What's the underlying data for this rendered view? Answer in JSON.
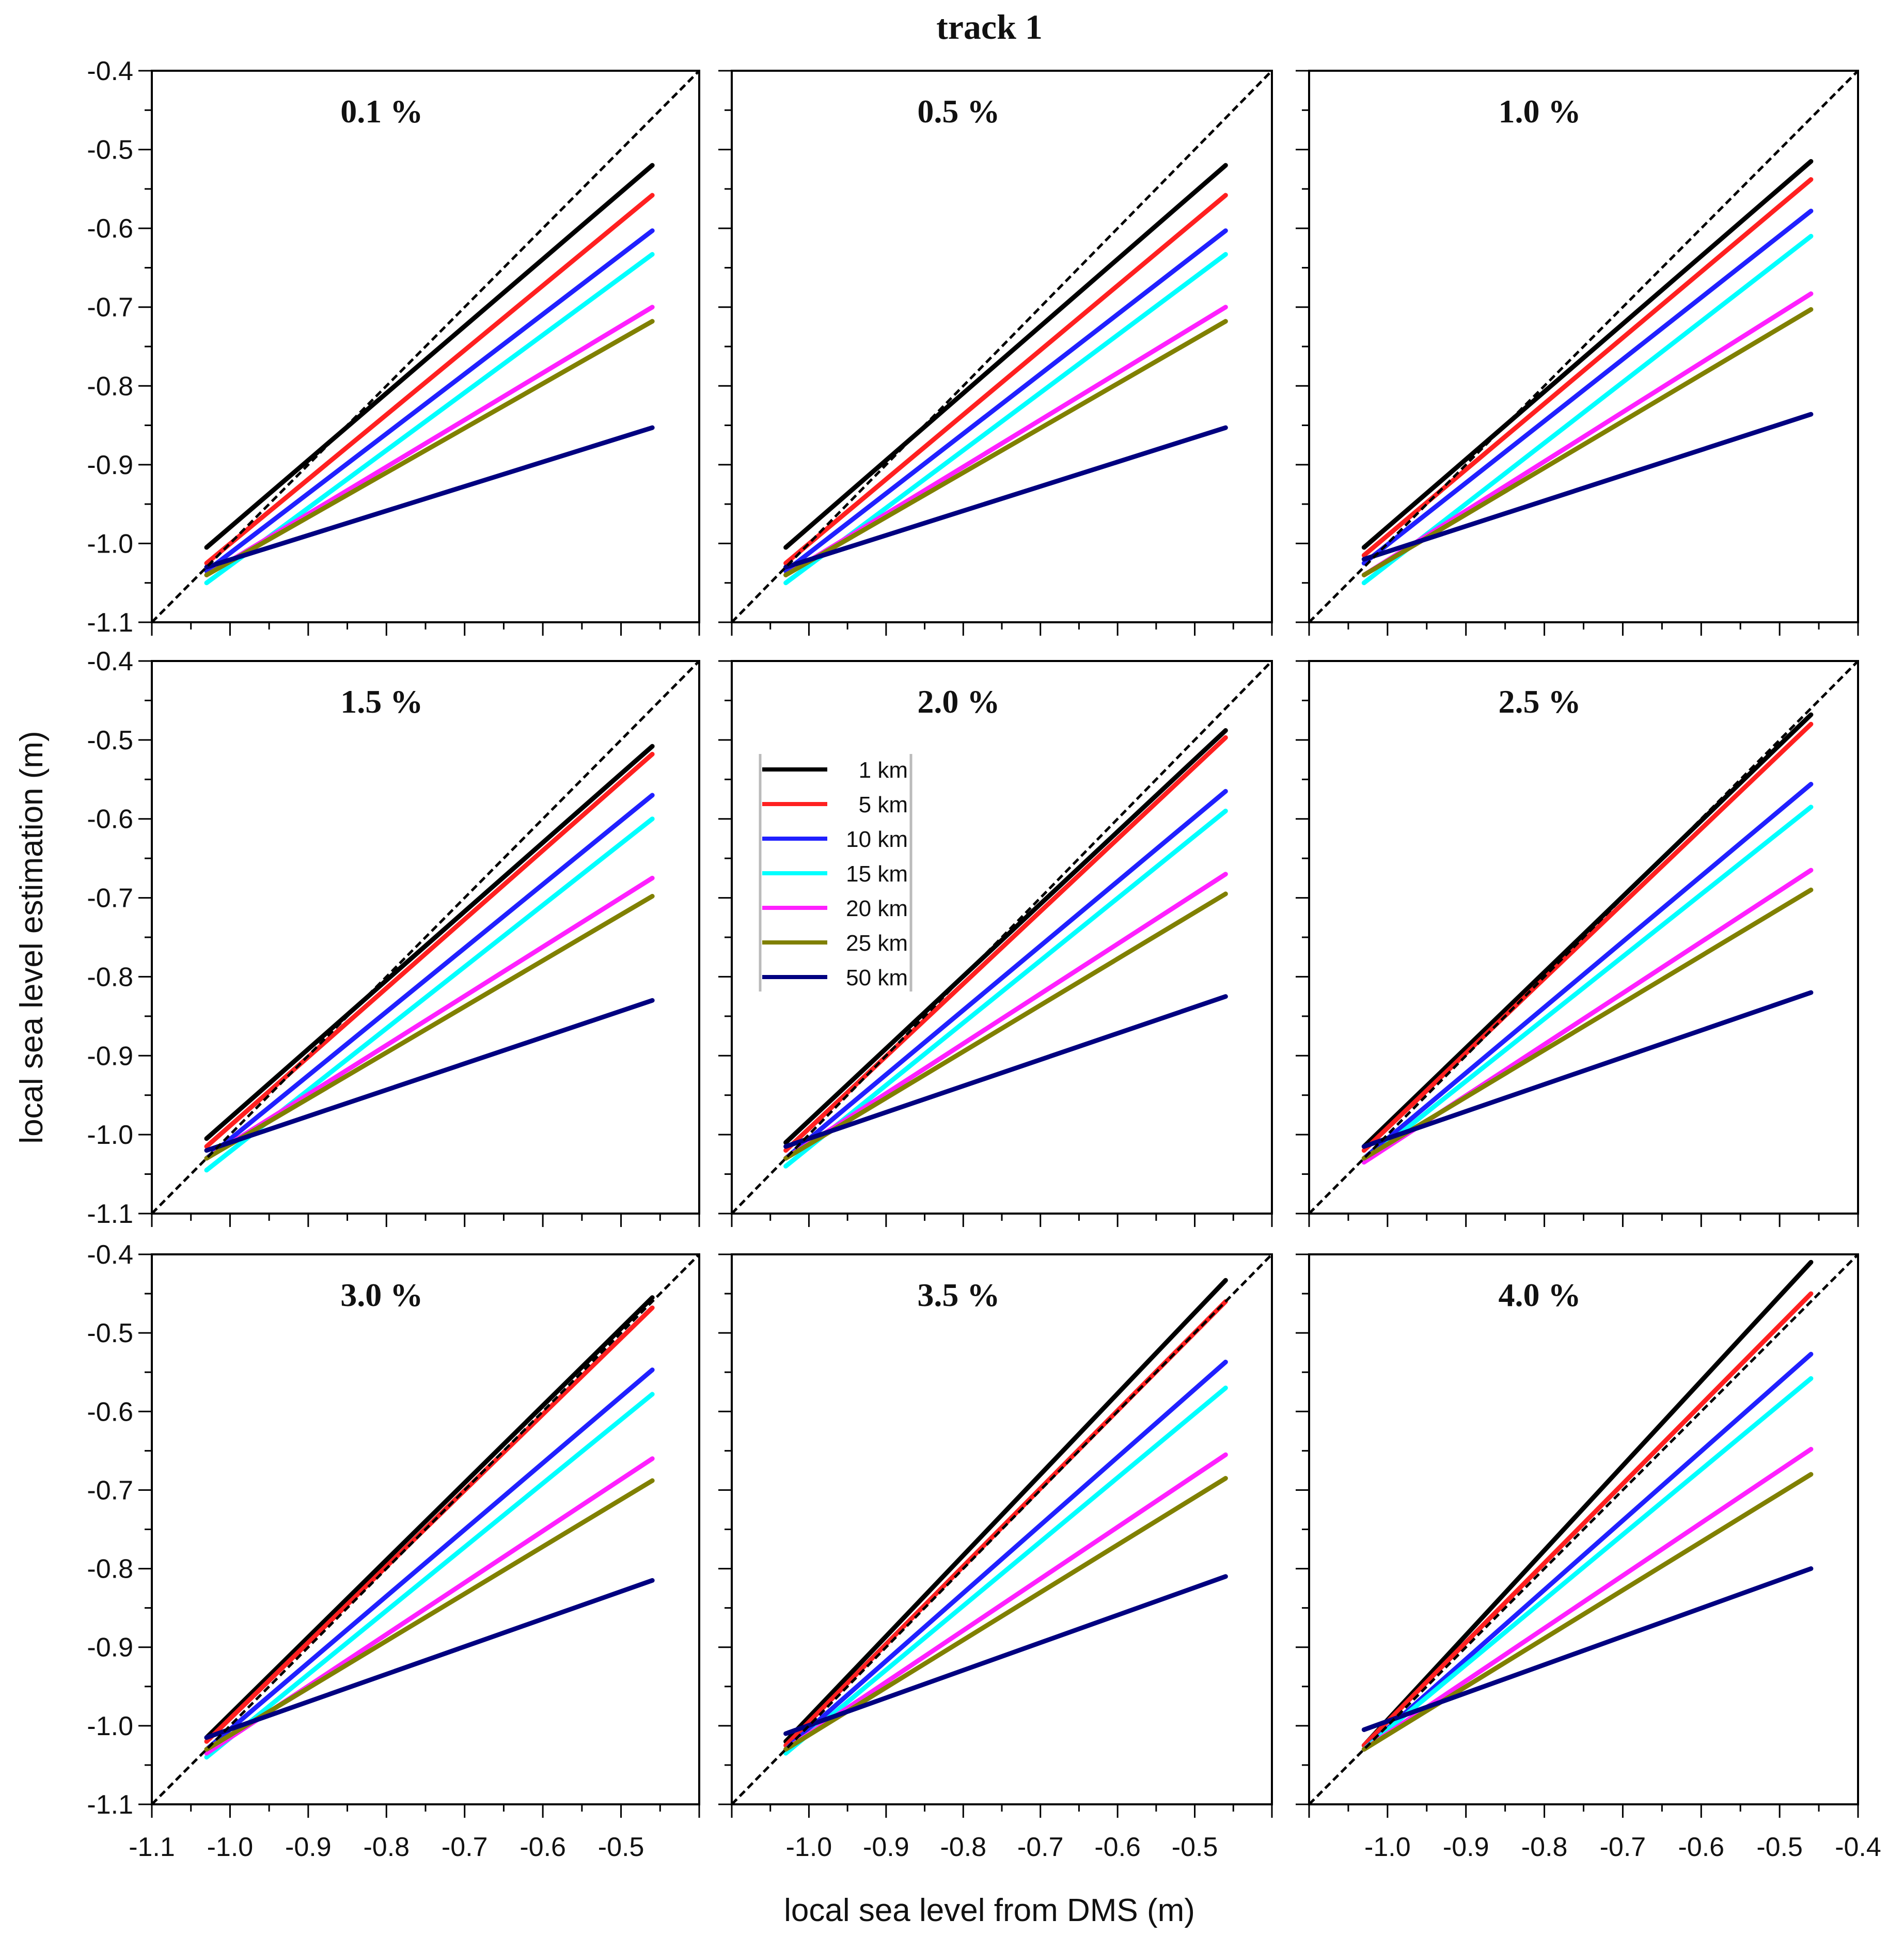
{
  "chart_data": {
    "type": "line",
    "title": "track 1",
    "xlabel": "local sea level from DMS (m)",
    "ylabel": "local sea level estimation (m)",
    "xlim": [
      -1.1,
      -0.4
    ],
    "ylim": [
      -1.1,
      -0.4
    ],
    "x_ticks": {
      "col1": [
        "-1.1",
        "-1.0",
        "-0.9",
        "-0.8",
        "-0.7",
        "-0.6",
        "-0.5"
      ],
      "col2": [
        "-1.0",
        "-0.9",
        "-0.8",
        "-0.7",
        "-0.6",
        "-0.5"
      ],
      "col3": [
        "-1.0",
        "-0.9",
        "-0.8",
        "-0.7",
        "-0.6",
        "-0.5",
        "-0.4"
      ]
    },
    "y_ticks": [
      "-0.4",
      "-0.5",
      "-0.6",
      "-0.7",
      "-0.8",
      "-0.9",
      "-1.0",
      "-1.1"
    ],
    "reference_line": "1:1 dashed",
    "legend": {
      "placement": "top-left of 2.0 % panel",
      "entries": [
        {
          "name": "1 km",
          "color": "#000000"
        },
        {
          "name": "5 km",
          "color": "#ff2020"
        },
        {
          "name": "10 km",
          "color": "#2020ff"
        },
        {
          "name": "15 km",
          "color": "#00ffff"
        },
        {
          "name": "20 km",
          "color": "#ff20ff"
        },
        {
          "name": "25 km",
          "color": "#808000"
        },
        {
          "name": "50 km",
          "color": "#000080"
        }
      ]
    },
    "x_range_of_series": [
      -1.03,
      -0.46
    ],
    "panels": [
      {
        "title": "0.1 %",
        "series": [
          [
            -1.005,
            -0.52
          ],
          [
            -1.025,
            -0.558
          ],
          [
            -1.035,
            -0.603
          ],
          [
            -1.05,
            -0.633
          ],
          [
            -1.04,
            -0.7
          ],
          [
            -1.04,
            -0.718
          ],
          [
            -1.03,
            -0.853
          ]
        ]
      },
      {
        "title": "0.5 %",
        "series": [
          [
            -1.005,
            -0.52
          ],
          [
            -1.025,
            -0.558
          ],
          [
            -1.035,
            -0.603
          ],
          [
            -1.05,
            -0.633
          ],
          [
            -1.04,
            -0.7
          ],
          [
            -1.04,
            -0.718
          ],
          [
            -1.03,
            -0.853
          ]
        ]
      },
      {
        "title": "1.0 %",
        "series": [
          [
            -1.005,
            -0.515
          ],
          [
            -1.015,
            -0.538
          ],
          [
            -1.025,
            -0.578
          ],
          [
            -1.05,
            -0.61
          ],
          [
            -1.04,
            -0.683
          ],
          [
            -1.04,
            -0.703
          ],
          [
            -1.02,
            -0.836
          ]
        ]
      },
      {
        "title": "1.5 %",
        "series": [
          [
            -1.005,
            -0.508
          ],
          [
            -1.015,
            -0.518
          ],
          [
            -1.03,
            -0.57
          ],
          [
            -1.045,
            -0.6
          ],
          [
            -1.03,
            -0.675
          ],
          [
            -1.03,
            -0.698
          ],
          [
            -1.02,
            -0.83
          ]
        ]
      },
      {
        "title": "2.0 %",
        "series": [
          [
            -1.01,
            -0.488
          ],
          [
            -1.02,
            -0.497
          ],
          [
            -1.03,
            -0.565
          ],
          [
            -1.04,
            -0.59
          ],
          [
            -1.03,
            -0.67
          ],
          [
            -1.03,
            -0.695
          ],
          [
            -1.015,
            -0.825
          ]
        ]
      },
      {
        "title": "2.5 %",
        "series": [
          [
            -1.015,
            -0.468
          ],
          [
            -1.02,
            -0.48
          ],
          [
            -1.03,
            -0.556
          ],
          [
            -1.035,
            -0.585
          ],
          [
            -1.035,
            -0.665
          ],
          [
            -1.03,
            -0.69
          ],
          [
            -1.015,
            -0.82
          ]
        ]
      },
      {
        "title": "3.0 %",
        "series": [
          [
            -1.015,
            -0.455
          ],
          [
            -1.02,
            -0.468
          ],
          [
            -1.03,
            -0.547
          ],
          [
            -1.04,
            -0.578
          ],
          [
            -1.035,
            -0.66
          ],
          [
            -1.03,
            -0.688
          ],
          [
            -1.015,
            -0.815
          ]
        ]
      },
      {
        "title": "3.5 %",
        "series": [
          [
            -1.02,
            -0.433
          ],
          [
            -1.025,
            -0.46
          ],
          [
            -1.03,
            -0.537
          ],
          [
            -1.035,
            -0.57
          ],
          [
            -1.03,
            -0.655
          ],
          [
            -1.03,
            -0.685
          ],
          [
            -1.01,
            -0.81
          ]
        ]
      },
      {
        "title": "4.0 %",
        "series": [
          [
            -1.025,
            -0.41
          ],
          [
            -1.025,
            -0.45
          ],
          [
            -1.03,
            -0.527
          ],
          [
            -1.03,
            -0.558
          ],
          [
            -1.03,
            -0.648
          ],
          [
            -1.03,
            -0.68
          ],
          [
            -1.005,
            -0.8
          ]
        ]
      }
    ]
  }
}
